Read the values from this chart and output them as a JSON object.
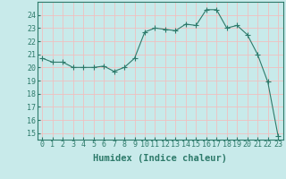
{
  "x": [
    0,
    1,
    2,
    3,
    4,
    5,
    6,
    7,
    8,
    9,
    10,
    11,
    12,
    13,
    14,
    15,
    16,
    17,
    18,
    19,
    20,
    21,
    22,
    23
  ],
  "y": [
    20.7,
    20.4,
    20.4,
    20.0,
    20.0,
    20.0,
    20.1,
    19.7,
    20.0,
    20.7,
    22.7,
    23.0,
    22.9,
    22.8,
    23.3,
    23.2,
    24.4,
    24.4,
    23.0,
    23.2,
    22.5,
    21.0,
    18.9,
    14.8
  ],
  "line_color": "#2d7a6a",
  "marker": "+",
  "marker_size": 4,
  "bg_color": "#c8eaea",
  "grid_color": "#f0c0c0",
  "xlabel": "Humidex (Indice chaleur)",
  "ylim": [
    14.5,
    25.0
  ],
  "xlim": [
    -0.5,
    23.5
  ],
  "yticks": [
    15,
    16,
    17,
    18,
    19,
    20,
    21,
    22,
    23,
    24
  ],
  "xticks": [
    0,
    1,
    2,
    3,
    4,
    5,
    6,
    7,
    8,
    9,
    10,
    11,
    12,
    13,
    14,
    15,
    16,
    17,
    18,
    19,
    20,
    21,
    22,
    23
  ],
  "tick_label_fontsize": 6,
  "xlabel_fontsize": 7.5
}
